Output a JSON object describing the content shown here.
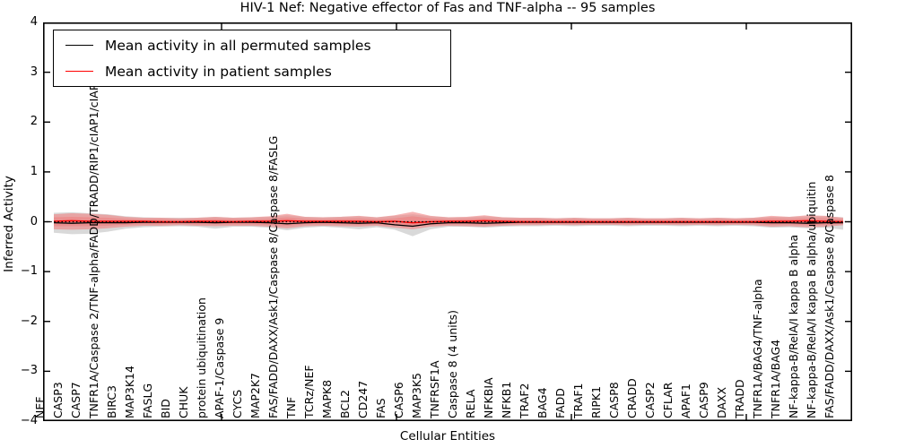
{
  "chart_data": {
    "type": "line",
    "title": "HIV-1 Nef: Negative effector of Fas and TNF-alpha -- 95 samples",
    "xlabel": "Cellular Entities",
    "ylabel": "Inferred Activity",
    "ylim": [
      -4,
      4
    ],
    "grid": false,
    "legend_position": "upper left",
    "yticks": {
      "values": [
        4,
        3,
        2,
        1,
        0,
        -1,
        -2,
        -3,
        -4
      ],
      "labels": [
        "4",
        "3",
        "2",
        "1",
        "0",
        "−1",
        "−2",
        "−3",
        "−4"
      ]
    },
    "categories": [
      "NEF",
      "CASP3",
      "CASP7",
      "TNFR1A/Caspase 2/TNF-alpha/FADD/TRADD/RIP1/cIAP1/cIAP2/TRAF2",
      "BIRC3",
      "MAP3K14",
      "FASLG",
      "BID",
      "CHUK",
      "protein ubiquitination",
      "APAF-1/Caspase 9",
      "CYCS",
      "MAP2K7",
      "FAS/FADD/DAXX/Ask1/Caspase 8/Caspase 8/FASLG",
      "TNF",
      "TCRz/NEF",
      "MAPK8",
      "BCL2",
      "CD247",
      "FAS",
      "CASP6",
      "MAP3K5",
      "TNFRSF1A",
      "Caspase 8 (4 units)",
      "RELA",
      "NFKBIA",
      "NFKB1",
      "TRAF2",
      "BAG4",
      "FADD",
      "TRAF1",
      "RIPK1",
      "CASP8",
      "CRADD",
      "CASP2",
      "CFLAR",
      "APAF1",
      "CASP9",
      "DAXX",
      "TRADD",
      "TNFR1A/BAG4/TNF-alpha",
      "TNFR1A/BAG4",
      "NF-kappa-B/RelA/I kappa B alpha",
      "NF-kappa-B/RelA/I kappa B alpha/ubiquitin",
      "FAS/FADD/DAXX/Ask1/Caspase 8/Caspase 8"
    ],
    "series": [
      {
        "name": "Mean activity in all permuted samples",
        "color": "#000000",
        "style": "solid",
        "values": [
          -0.02,
          -0.03,
          -0.02,
          -0.02,
          -0.02,
          -0.01,
          -0.01,
          -0.01,
          -0.01,
          -0.02,
          -0.01,
          -0.01,
          -0.02,
          -0.04,
          -0.02,
          -0.01,
          -0.02,
          -0.03,
          -0.02,
          -0.06,
          -0.09,
          -0.04,
          -0.02,
          -0.02,
          -0.03,
          -0.02,
          -0.01,
          -0.01,
          -0.01,
          -0.01,
          -0.01,
          -0.01,
          -0.01,
          -0.01,
          -0.01,
          -0.01,
          -0.01,
          -0.01,
          -0.01,
          -0.01,
          -0.02,
          -0.02,
          -0.03,
          -0.02,
          -0.02
        ]
      },
      {
        "name": "Mean activity in patient samples",
        "color": "#ff0000",
        "style": "solid",
        "values": [
          0.01,
          0.02,
          0.01,
          0.01,
          0.01,
          0.01,
          0.0,
          0.0,
          0.01,
          0.01,
          0.0,
          0.01,
          0.01,
          0.02,
          0.01,
          0.01,
          0.01,
          0.01,
          0.0,
          0.01,
          -0.02,
          0.0,
          0.01,
          0.01,
          0.02,
          0.01,
          0.0,
          0.0,
          0.0,
          0.0,
          0.0,
          0.0,
          0.0,
          0.0,
          0.0,
          0.0,
          0.0,
          0.0,
          0.0,
          0.0,
          0.01,
          0.01,
          0.02,
          0.01,
          0.0
        ]
      }
    ],
    "bands": [
      {
        "name": "permuted-sample-range",
        "color": "#808080",
        "opacity": 0.3,
        "upper": [
          0.18,
          0.19,
          0.17,
          0.15,
          0.11,
          0.09,
          0.08,
          0.08,
          0.08,
          0.1,
          0.08,
          0.09,
          0.1,
          0.13,
          0.1,
          0.09,
          0.1,
          0.11,
          0.09,
          0.12,
          0.15,
          0.11,
          0.09,
          0.09,
          0.11,
          0.09,
          0.08,
          0.08,
          0.07,
          0.08,
          0.07,
          0.07,
          0.08,
          0.07,
          0.07,
          0.08,
          0.07,
          0.08,
          0.07,
          0.08,
          0.1,
          0.1,
          0.11,
          0.11,
          0.09
        ],
        "lower": [
          -0.22,
          -0.25,
          -0.24,
          -0.2,
          -0.14,
          -0.11,
          -0.1,
          -0.09,
          -0.1,
          -0.14,
          -0.1,
          -0.1,
          -0.12,
          -0.17,
          -0.12,
          -0.1,
          -0.12,
          -0.15,
          -0.11,
          -0.16,
          -0.29,
          -0.15,
          -0.1,
          -0.1,
          -0.12,
          -0.1,
          -0.09,
          -0.09,
          -0.08,
          -0.09,
          -0.08,
          -0.08,
          -0.09,
          -0.08,
          -0.08,
          -0.09,
          -0.08,
          -0.09,
          -0.08,
          -0.09,
          -0.12,
          -0.11,
          -0.13,
          -0.12,
          -0.16
        ]
      },
      {
        "name": "patient-sample-range",
        "color": "#f08080",
        "opacity": 0.6,
        "upper": [
          0.15,
          0.17,
          0.16,
          0.14,
          0.1,
          0.08,
          0.08,
          0.07,
          0.08,
          0.1,
          0.08,
          0.09,
          0.11,
          0.16,
          0.1,
          0.09,
          0.1,
          0.12,
          0.09,
          0.13,
          0.2,
          0.12,
          0.09,
          0.1,
          0.13,
          0.09,
          0.08,
          0.08,
          0.07,
          0.08,
          0.07,
          0.07,
          0.08,
          0.07,
          0.07,
          0.08,
          0.07,
          0.08,
          0.07,
          0.08,
          0.12,
          0.1,
          0.13,
          0.12,
          0.08
        ],
        "lower": [
          -0.15,
          -0.16,
          -0.15,
          -0.13,
          -0.1,
          -0.08,
          -0.08,
          -0.07,
          -0.08,
          -0.09,
          -0.08,
          -0.08,
          -0.1,
          -0.13,
          -0.09,
          -0.08,
          -0.09,
          -0.1,
          -0.08,
          -0.12,
          -0.15,
          -0.1,
          -0.08,
          -0.09,
          -0.1,
          -0.08,
          -0.07,
          -0.07,
          -0.06,
          -0.07,
          -0.06,
          -0.06,
          -0.07,
          -0.06,
          -0.06,
          -0.07,
          -0.06,
          -0.07,
          -0.06,
          -0.07,
          -0.1,
          -0.09,
          -0.11,
          -0.1,
          -0.07
        ]
      },
      {
        "name": "patient-sample-core",
        "color": "#f08080",
        "opacity": 0.6,
        "upper": [
          0.09,
          0.1,
          0.09,
          0.08,
          0.06,
          0.05,
          0.05,
          0.04,
          0.05,
          0.06,
          0.05,
          0.05,
          0.06,
          0.09,
          0.06,
          0.05,
          0.06,
          0.07,
          0.05,
          0.07,
          0.11,
          0.07,
          0.05,
          0.06,
          0.07,
          0.05,
          0.05,
          0.05,
          0.04,
          0.05,
          0.04,
          0.04,
          0.05,
          0.04,
          0.04,
          0.05,
          0.04,
          0.05,
          0.04,
          0.05,
          0.07,
          0.06,
          0.07,
          0.07,
          0.05
        ],
        "lower": [
          -0.09,
          -0.09,
          -0.09,
          -0.08,
          -0.06,
          -0.05,
          -0.05,
          -0.04,
          -0.05,
          -0.05,
          -0.05,
          -0.05,
          -0.06,
          -0.08,
          -0.05,
          -0.05,
          -0.05,
          -0.06,
          -0.05,
          -0.07,
          -0.09,
          -0.06,
          -0.05,
          -0.05,
          -0.06,
          -0.05,
          -0.04,
          -0.04,
          -0.04,
          -0.04,
          -0.04,
          -0.04,
          -0.04,
          -0.04,
          -0.04,
          -0.04,
          -0.04,
          -0.04,
          -0.04,
          -0.04,
          -0.06,
          -0.05,
          -0.07,
          -0.06,
          -0.04
        ]
      }
    ],
    "reference_line": {
      "value": 0,
      "style": "dotted",
      "color": "#000000"
    }
  }
}
